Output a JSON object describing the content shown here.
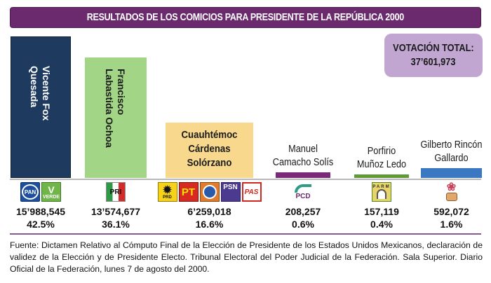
{
  "title": "RESULTADOS DE LOS COMICIOS PARA PRESIDENTE DE LA REPÚBLICA 2000",
  "total": {
    "label": "VOTACIÓN TOTAL:",
    "value": "37’601,973"
  },
  "colors": {
    "title_bg": "#6b2a6e",
    "total_bg": "#c1a6d1",
    "divider": "#7b4a86"
  },
  "chart_data": {
    "type": "bar",
    "title": "RESULTADOS DE LOS COMICIOS PARA PRESIDENTE DE LA REPÚBLICA 2000",
    "xlabel": "",
    "ylabel": "",
    "ylim": [
      0,
      15988545
    ],
    "grid": false,
    "categories": [
      "Vicente Fox Quesada",
      "Francisco Labastida Ochoa",
      "Cuauhtémoc Cárdenas Solórzano",
      "Manuel Camacho Solís",
      "Porfirio Muñoz Ledo",
      "Gilberto Rincón Gallardo"
    ],
    "values": [
      15988545,
      13574677,
      6259018,
      208257,
      157119,
      592072
    ],
    "percentages": [
      42.5,
      36.1,
      16.6,
      0.6,
      0.4,
      1.6
    ],
    "total_votes": 37601973
  },
  "candidates": [
    {
      "name_lines": [
        "Vicente Fox",
        "Quesada"
      ],
      "votes_label": "15’988,545",
      "pct_label": "42.5%",
      "color": "#1f3a5f",
      "text_color": "#ffffff",
      "label_style": "vertical",
      "parties": [
        {
          "icon": "pan-logo-icon",
          "text": "PAN"
        },
        {
          "icon": "verde-logo-icon",
          "text": "VERDE"
        }
      ]
    },
    {
      "name_lines": [
        "Francisco",
        "Labastida Ochoa"
      ],
      "votes_label": "13’574,677",
      "pct_label": "36.1%",
      "color": "#a3d587",
      "text_color": "#1a1a1a",
      "label_style": "vertical",
      "parties": [
        {
          "icon": "pri-logo-icon",
          "text": "PRI"
        }
      ]
    },
    {
      "name_lines": [
        "Cuauhtémoc",
        "Cárdenas",
        "Solórzano"
      ],
      "votes_label": "6’259,018",
      "pct_label": "16.6%",
      "color": "#f7d88c",
      "text_color": "#1a1a1a",
      "label_style": "inside",
      "parties": [
        {
          "icon": "prd-logo-icon",
          "text": "PRD"
        },
        {
          "icon": "pt-logo-icon",
          "text": "PT"
        },
        {
          "icon": "convergencia-logo-icon",
          "text": ""
        },
        {
          "icon": "psn-logo-icon",
          "text": "PSN"
        },
        {
          "icon": "pas-logo-icon",
          "text": "PAS"
        }
      ]
    },
    {
      "name_lines": [
        "Manuel",
        "Camacho Solís"
      ],
      "votes_label": "208,257",
      "pct_label": "0.6%",
      "color": "#7a2a78",
      "text_color": "#1a1a1a",
      "label_style": "above",
      "parties": [
        {
          "icon": "pcd-logo-icon",
          "text": "PCD"
        }
      ]
    },
    {
      "name_lines": [
        "Porfirio",
        "Muñoz Ledo"
      ],
      "votes_label": "157,119",
      "pct_label": "0.4%",
      "color": "#5f9a35",
      "text_color": "#1a1a1a",
      "label_style": "above",
      "parties": [
        {
          "icon": "parm-logo-icon",
          "text": "PARM"
        }
      ]
    },
    {
      "name_lines": [
        "Gilberto Rincón",
        "Gallardo"
      ],
      "votes_label": "592,072",
      "pct_label": "1.6%",
      "color": "#3a78c2",
      "text_color": "#1a1a1a",
      "label_style": "above",
      "parties": [
        {
          "icon": "rose-fist-logo-icon",
          "text": ""
        }
      ]
    }
  ],
  "footnote": "Fuente: Dictamen Relativo al Cómputo Final de la Elección de Presidente de los Estados Unidos Mexicanos, declaración de validez de la Elección y de Presidente Electo. Tribunal Electoral del Poder Judicial de la Federación. Sala Superior. Diario Oficial de la Federación, lunes 7 de agosto del 2000."
}
